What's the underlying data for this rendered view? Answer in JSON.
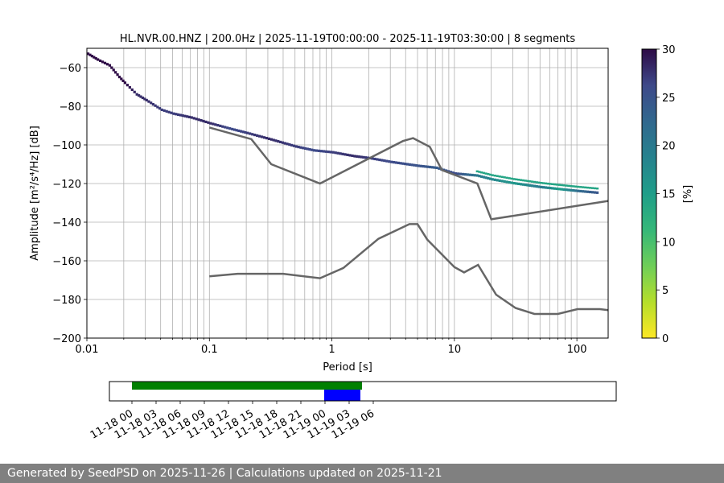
{
  "chart_data": [
    {
      "type": "heatmap",
      "title": "HL.NVR.00.HNZ | 200.0Hz | 2025-11-19T00:00:00 - 2025-11-19T03:30:00 | 8 segments",
      "xlabel": "Period [s]",
      "ylabel": "Amplitude [m²/s⁴/Hz] [dB]",
      "xscale": "log",
      "xlim": [
        0.01,
        180
      ],
      "ylim": [
        -200,
        -50
      ],
      "x_ticks": [
        "0.01",
        "0.1",
        "1",
        "10",
        "100"
      ],
      "y_ticks": [
        "−60",
        "−80",
        "−100",
        "−120",
        "−140",
        "−160",
        "−180",
        "−200"
      ],
      "grid": true,
      "colorbar": {
        "label": "[%]",
        "range": [
          0,
          30
        ],
        "ticks": [
          "0",
          "5",
          "10",
          "15",
          "20",
          "25",
          "30"
        ],
        "colormap": "viridis"
      },
      "psd_points": [
        {
          "x": 0.01,
          "y": -53,
          "pct": 30
        },
        {
          "x": 0.012,
          "y": -56,
          "pct": 30
        },
        {
          "x": 0.015,
          "y": -59,
          "pct": 30
        },
        {
          "x": 0.018,
          "y": -65,
          "pct": 30
        },
        {
          "x": 0.02,
          "y": -68,
          "pct": 30
        },
        {
          "x": 0.025,
          "y": -74,
          "pct": 28
        },
        {
          "x": 0.03,
          "y": -77,
          "pct": 28
        },
        {
          "x": 0.04,
          "y": -82,
          "pct": 27
        },
        {
          "x": 0.05,
          "y": -84,
          "pct": 27
        },
        {
          "x": 0.07,
          "y": -86,
          "pct": 28
        },
        {
          "x": 0.1,
          "y": -89,
          "pct": 28
        },
        {
          "x": 0.15,
          "y": -92,
          "pct": 26
        },
        {
          "x": 0.2,
          "y": -94,
          "pct": 27
        },
        {
          "x": 0.3,
          "y": -97,
          "pct": 28
        },
        {
          "x": 0.5,
          "y": -101,
          "pct": 27
        },
        {
          "x": 0.7,
          "y": -103,
          "pct": 26
        },
        {
          "x": 1,
          "y": -104,
          "pct": 27
        },
        {
          "x": 1.5,
          "y": -106,
          "pct": 28
        },
        {
          "x": 2,
          "y": -107,
          "pct": 27
        },
        {
          "x": 3,
          "y": -109,
          "pct": 26
        },
        {
          "x": 5,
          "y": -111,
          "pct": 25
        },
        {
          "x": 7,
          "y": -112,
          "pct": 24
        },
        {
          "x": 10,
          "y": -115,
          "pct": 26
        },
        {
          "x": 15,
          "y": -116,
          "pct": 20
        },
        {
          "x": 20,
          "y": -118,
          "pct": 18
        },
        {
          "x": 30,
          "y": -120,
          "pct": 16
        },
        {
          "x": 50,
          "y": -122,
          "pct": 20
        },
        {
          "x": 70,
          "y": -123,
          "pct": 15
        },
        {
          "x": 100,
          "y": -124,
          "pct": 22
        },
        {
          "x": 150,
          "y": -125,
          "pct": 25
        }
      ],
      "noise_models": [
        {
          "points": [
            [
              0.1,
              -91
            ],
            [
              0.22,
              -97
            ],
            [
              0.32,
              -110
            ],
            [
              0.8,
              -120
            ],
            [
              3.8,
              -98
            ],
            [
              4.6,
              -96.5
            ],
            [
              6.3,
              -101
            ],
            [
              7.9,
              -113
            ],
            [
              15.4,
              -120
            ],
            [
              20,
              -138.5
            ],
            [
              180,
              -129
            ]
          ]
        },
        {
          "points": [
            [
              0.1,
              -168
            ],
            [
              0.17,
              -166.7
            ],
            [
              0.4,
              -166.7
            ],
            [
              0.8,
              -169
            ],
            [
              1.24,
              -163.7
            ],
            [
              2.4,
              -148.6
            ],
            [
              4.3,
              -141
            ],
            [
              5,
              -141
            ],
            [
              6,
              -149
            ],
            [
              10,
              -163.2
            ],
            [
              12,
              -166
            ],
            [
              15.6,
              -162.1
            ],
            [
              21.9,
              -177.5
            ],
            [
              31.6,
              -184.4
            ],
            [
              45,
              -187.5
            ],
            [
              70,
              -187.5
            ],
            [
              101,
              -185
            ],
            [
              154,
              -185
            ],
            [
              180,
              -185.5
            ]
          ]
        }
      ]
    },
    {
      "type": "timeline",
      "x_ticks": [
        "11-18 00",
        "11-18 03",
        "11-18 06",
        "11-18 09",
        "11-18 12",
        "11-18 15",
        "11-18 18",
        "11-18 21",
        "11-19 00",
        "11-19 03",
        "11-19 06"
      ],
      "available_data": {
        "start_hours": 0,
        "end_hours": 28.6
      },
      "analysis_window": {
        "start_hours": 23.9,
        "end_hours": 28.4
      },
      "colors": {
        "available": "#008000",
        "window": "#0000ff"
      }
    }
  ],
  "footer": {
    "text": "Generated by SeedPSD on 2025-11-26 | Calculations updated on 2025-11-21"
  }
}
